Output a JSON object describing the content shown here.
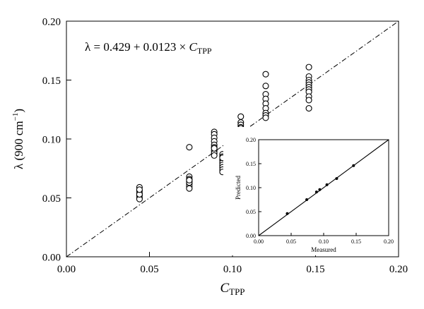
{
  "chart_data": [
    {
      "type": "scatter",
      "title": "",
      "equation": {
        "lhs": "λ = 0.429 + 0.0123 × ",
        "var": "C",
        "sub": "TPP"
      },
      "xlabel": {
        "main": "C",
        "sub": "TPP"
      },
      "ylabel": {
        "main": "λ (900 cm",
        "sup": "−1",
        "end": ")"
      },
      "xlim": [
        0.0,
        0.2
      ],
      "ylim": [
        0.0,
        0.2
      ],
      "xticks": [
        "0.00",
        "0.05",
        "0.10",
        "0.15",
        "0.20"
      ],
      "yticks": [
        "0.00",
        "0.05",
        "0.10",
        "0.15",
        "0.20"
      ],
      "grid": false,
      "fit_line": {
        "style": "dash-dot",
        "x": [
          0.0,
          0.2
        ],
        "y": [
          0.0,
          0.2
        ]
      },
      "series": [
        {
          "x": [
            0.044,
            0.044,
            0.044,
            0.044,
            0.044,
            0.044,
            0.044,
            0.044,
            0.074,
            0.074,
            0.074,
            0.074,
            0.074,
            0.074,
            0.074,
            0.074,
            0.074,
            0.089,
            0.089,
            0.089,
            0.089,
            0.089,
            0.089,
            0.089,
            0.089,
            0.089,
            0.089,
            0.094,
            0.094,
            0.094,
            0.094,
            0.094,
            0.094,
            0.094,
            0.094,
            0.094,
            0.105,
            0.105,
            0.105,
            0.105,
            0.105,
            0.105,
            0.105,
            0.105,
            0.105,
            0.12,
            0.12,
            0.12,
            0.12,
            0.12,
            0.12,
            0.12,
            0.12,
            0.12,
            0.12,
            0.146,
            0.146,
            0.146,
            0.146,
            0.146,
            0.146,
            0.146,
            0.146,
            0.146,
            0.146,
            0.146
          ],
          "y": [
            0.059,
            0.056,
            0.054,
            0.052,
            0.05,
            0.049,
            0.053,
            0.057,
            0.093,
            0.068,
            0.066,
            0.064,
            0.062,
            0.06,
            0.058,
            0.063,
            0.065,
            0.106,
            0.104,
            0.101,
            0.098,
            0.095,
            0.093,
            0.09,
            0.088,
            0.086,
            0.092,
            0.087,
            0.085,
            0.082,
            0.08,
            0.078,
            0.076,
            0.074,
            0.072,
            0.084,
            0.119,
            0.114,
            0.112,
            0.11,
            0.108,
            0.106,
            0.104,
            0.102,
            0.109,
            0.155,
            0.145,
            0.138,
            0.134,
            0.13,
            0.126,
            0.122,
            0.12,
            0.118,
            0.104,
            0.161,
            0.153,
            0.15,
            0.148,
            0.146,
            0.144,
            0.142,
            0.14,
            0.136,
            0.133,
            0.126
          ]
        }
      ]
    },
    {
      "type": "scatter",
      "title": "",
      "xlabel": "Measured",
      "ylabel": "Predicted",
      "xlim": [
        0.0,
        0.2
      ],
      "ylim": [
        0.0,
        0.2
      ],
      "xticks": [
        "0.00",
        "0.05",
        "0.10",
        "0.15",
        "0.20"
      ],
      "yticks": [
        "0.00",
        "0.05",
        "0.10",
        "0.15",
        "0.20"
      ],
      "grid": false,
      "identity_line": {
        "x": [
          0.0,
          0.2
        ],
        "y": [
          0.0,
          0.2
        ]
      },
      "series": [
        {
          "x": [
            0.044,
            0.074,
            0.089,
            0.094,
            0.105,
            0.12,
            0.146
          ],
          "y": [
            0.046,
            0.075,
            0.091,
            0.096,
            0.106,
            0.119,
            0.146
          ]
        }
      ]
    }
  ]
}
